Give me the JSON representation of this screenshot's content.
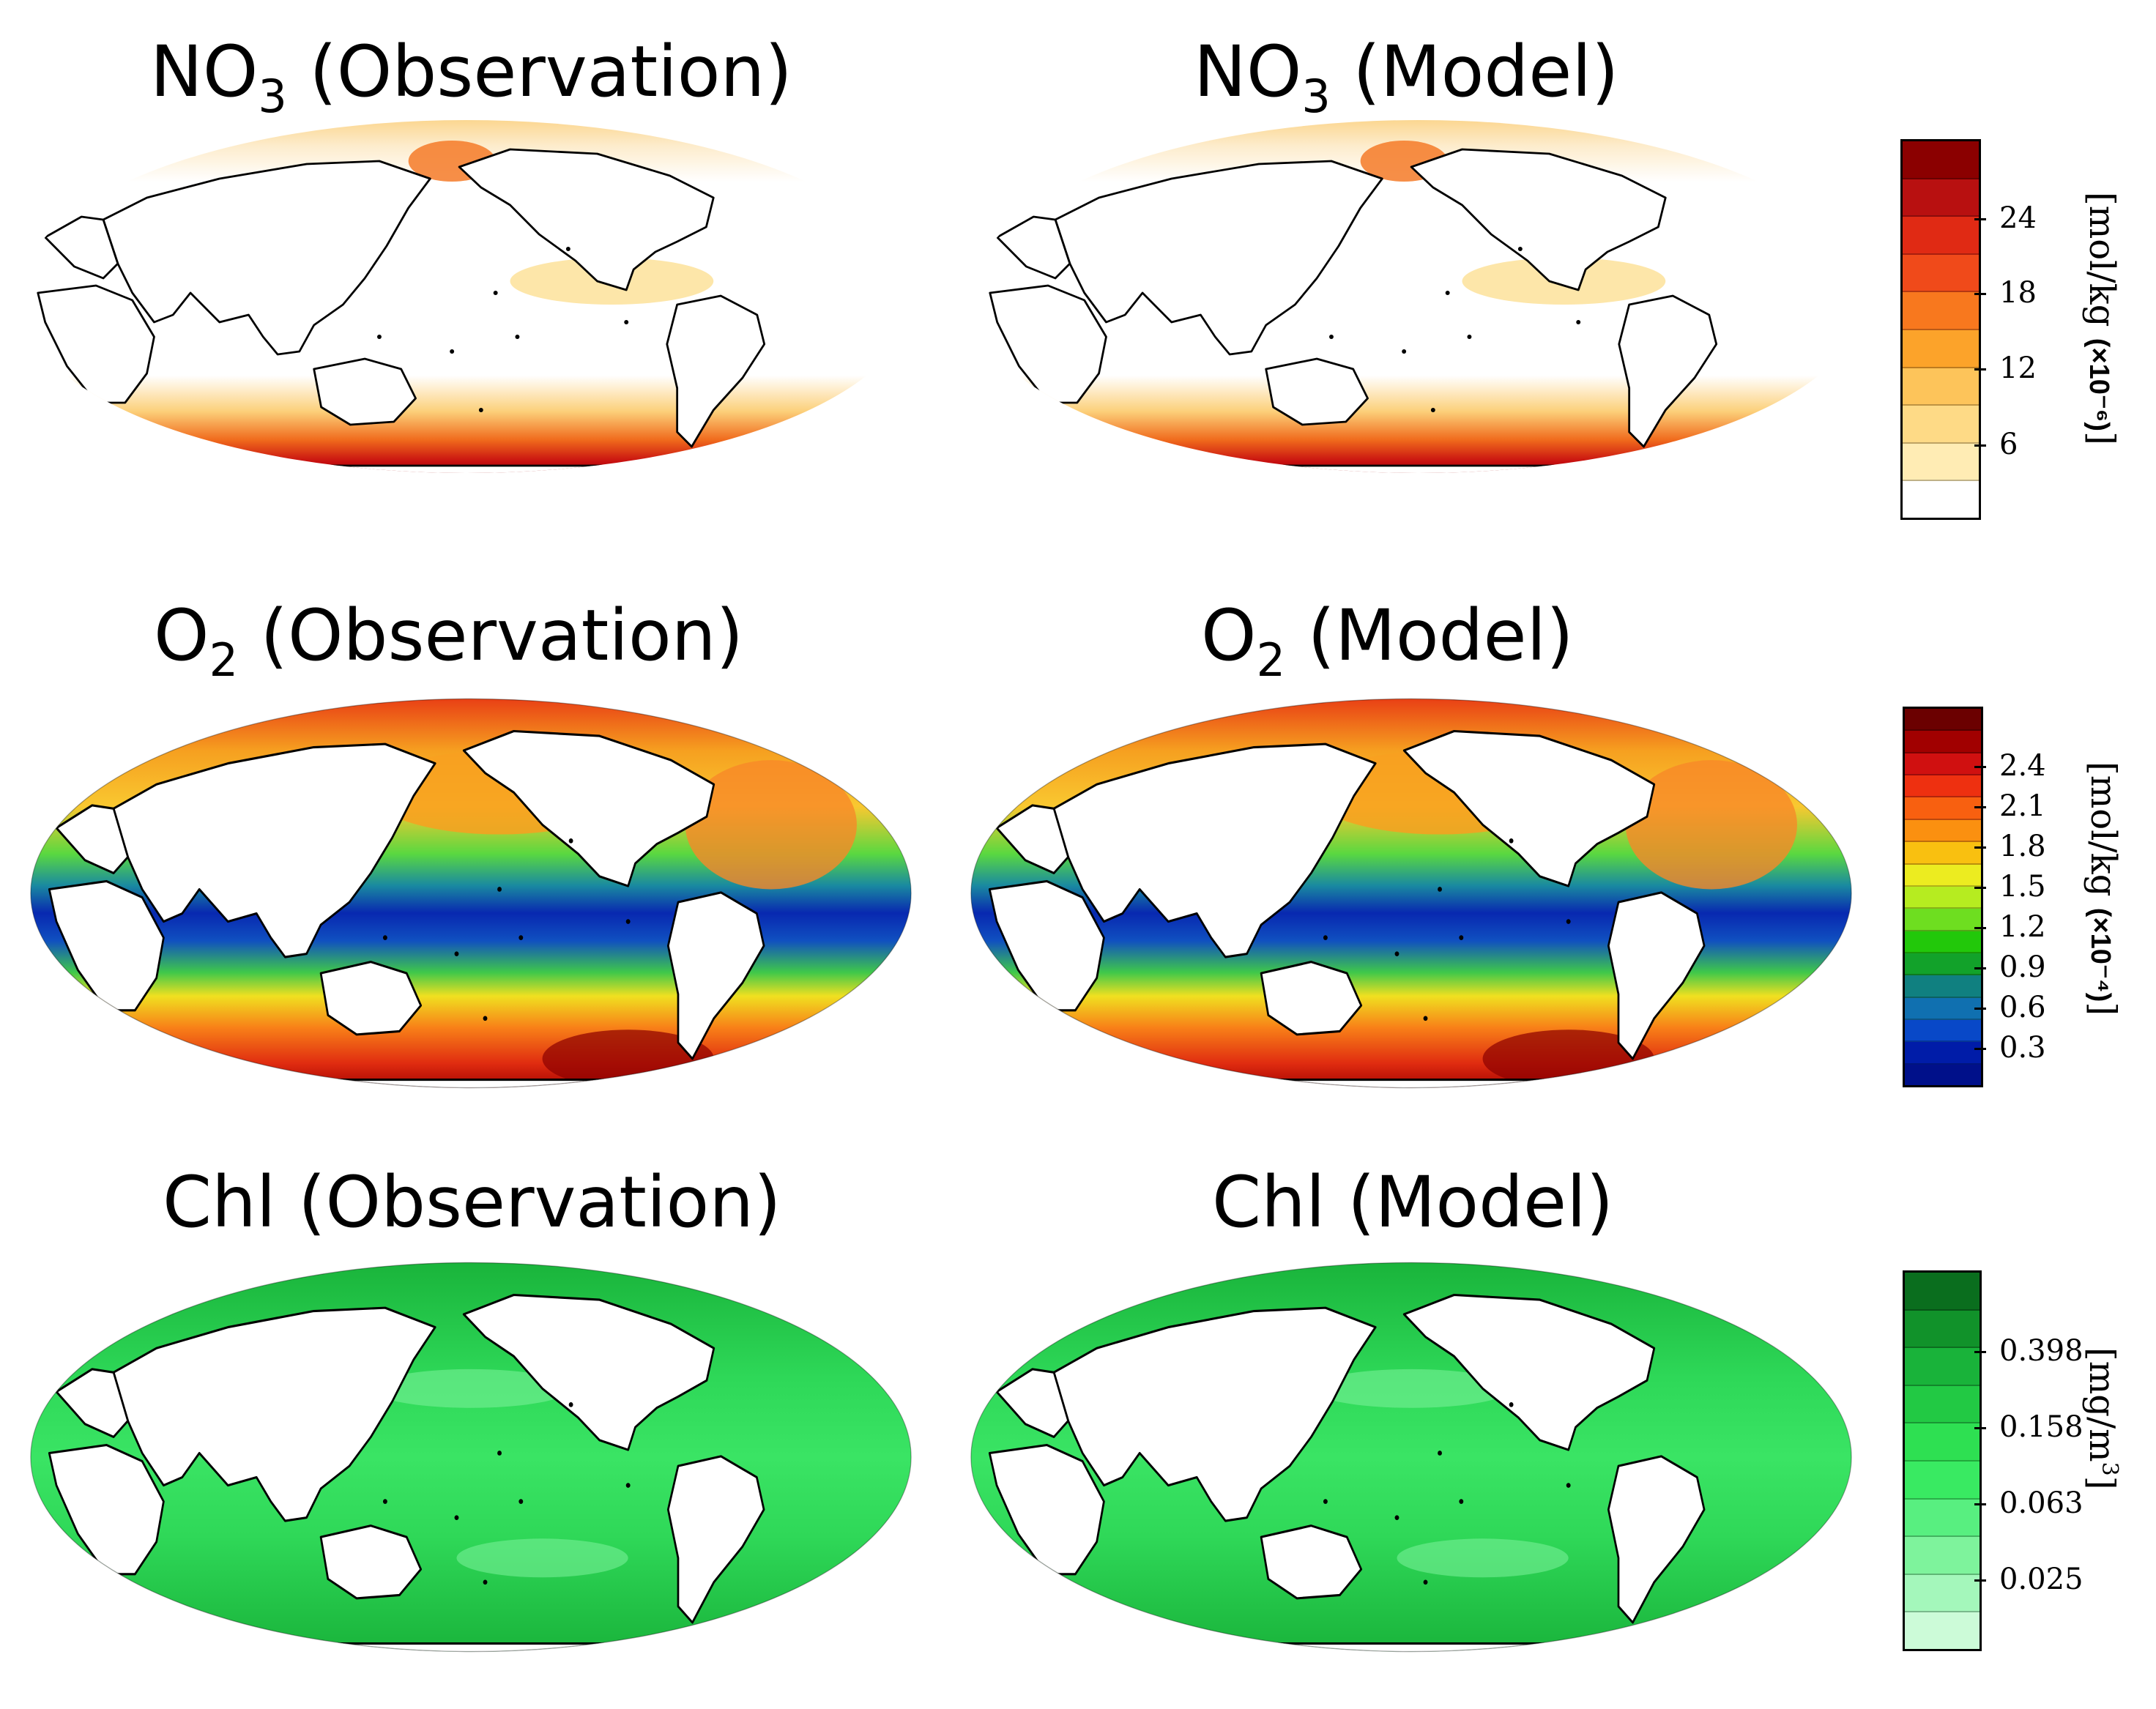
{
  "panels": {
    "no3_obs": {
      "title": "NO",
      "sub": "3",
      "suffix": " (Observation)"
    },
    "no3_mod": {
      "title": "NO",
      "sub": "3",
      "suffix": " (Model)"
    },
    "o2_obs": {
      "title": "O",
      "sub": "2",
      "suffix": " (Observation)"
    },
    "o2_mod": {
      "title": "O",
      "sub": "2",
      "suffix": " (Model)"
    },
    "chl_obs": {
      "title": "Chl (Observation)"
    },
    "chl_mod": {
      "title": "Chl (Model)"
    }
  },
  "colorbars": {
    "no3": {
      "unit": "[mol/kg ",
      "multiplier": "(×10⁻⁶)",
      "close": "]",
      "ticks": [
        "24",
        "18",
        "12",
        "6"
      ],
      "colors": [
        "#8b0000",
        "#b81010",
        "#e02a14",
        "#f04a1a",
        "#f8781e",
        "#fca32a",
        "#fdc45a",
        "#feda86",
        "#ffecb4",
        "#ffffff"
      ]
    },
    "o2": {
      "unit": "[mol/kg ",
      "multiplier": "(×10⁻⁴)",
      "close": "]",
      "ticks": [
        "2.4",
        "2.1",
        "1.8",
        "1.5",
        "1.2",
        "0.9",
        "0.6",
        "0.3"
      ],
      "colors": [
        "#6b0000",
        "#a10000",
        "#d01010",
        "#ee3010",
        "#f86010",
        "#fb9010",
        "#f9c010",
        "#ecec20",
        "#b6ec20",
        "#6ede20",
        "#22c80a",
        "#12a22a",
        "#108080",
        "#1070b0",
        "#0848c8",
        "#001ca8",
        "#00108a"
      ],
      "colors_note": ""
    },
    "chl": {
      "unit": "[mg/m",
      "sup": "3",
      "close": "]",
      "ticks": [
        "0.398",
        "0.158",
        "0.063",
        "0.025"
      ],
      "colors": [
        "#0a6e1e",
        "#11922a",
        "#19b33a",
        "#22c944",
        "#2ee052",
        "#39ea62",
        "#58ef80",
        "#7ef39c",
        "#a4f7bb",
        "#ccfbd8"
      ]
    }
  },
  "colors": {
    "land": "#ffffff",
    "coast": "#000000"
  }
}
